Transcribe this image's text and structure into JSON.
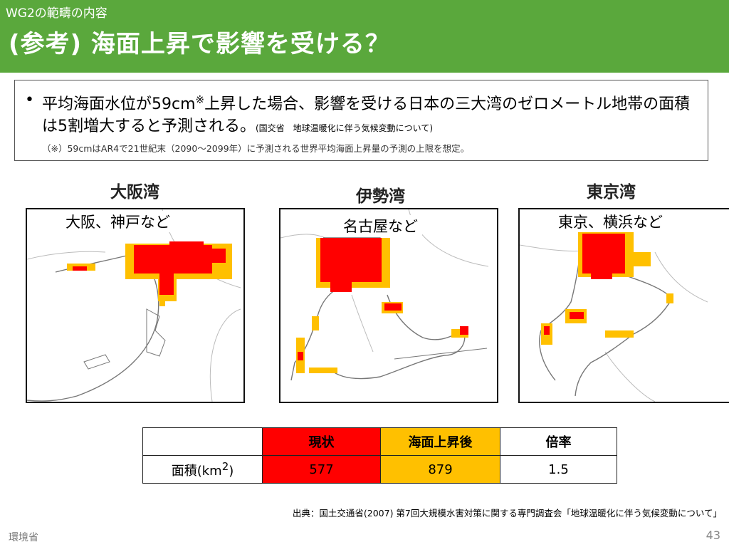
{
  "header": {
    "subtitle": "WG2の範疇の内容",
    "title": "(参考) 海面上昇で影響を受ける？"
  },
  "note": {
    "bullet": "•",
    "text_before_mark": "平均海面水位が59cm",
    "mark": "※",
    "text_after_mark": "上昇した場合、影響を受ける日本の三大湾のゼロメートル地帯の面積は5割増大すると予測される。",
    "source_inline": "(国交省　地球温暖化に伴う気候変動について)",
    "footnote": "（※）59cmはAR4で21世紀末（2090～2099年）に予測される世界平均海面上昇量の予測の上限を想定。"
  },
  "maps": [
    {
      "bay": "大阪湾",
      "cities": "大阪、神戸など"
    },
    {
      "bay": "伊勢湾",
      "cities": "名古屋など"
    },
    {
      "bay": "東京湾",
      "cities": "東京、横浜など"
    }
  ],
  "legend_colors": {
    "current": "#ff0000",
    "after_rise": "#ffc000"
  },
  "table": {
    "headers": [
      "現状",
      "海面上昇後",
      "倍率"
    ],
    "row_label": "面積(km",
    "row_label_sup": "2",
    "row_label_end": ")",
    "values": [
      "577",
      "879",
      "1.5"
    ]
  },
  "source": "出典：国土交通省(2007) 第7回大規模水害対策に関する専門調査会「地球温暖化に伴う気候変動について」",
  "footer": {
    "org": "環境省",
    "page": "43"
  }
}
